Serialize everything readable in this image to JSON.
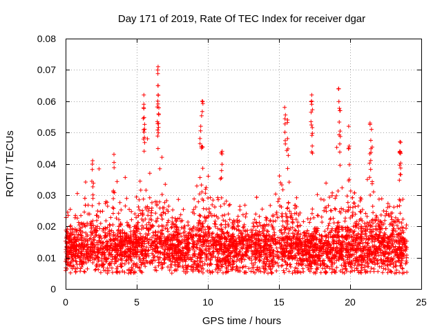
{
  "chart_data": {
    "type": "scatter",
    "title": "Day 171 of 2019, Rate Of TEC Index for receiver dgar",
    "xlabel": "GPS time / hours",
    "ylabel": "ROTI / TECUs",
    "xlim": [
      0,
      25
    ],
    "ylim": [
      0,
      0.08
    ],
    "x_ticks": [
      0,
      5,
      10,
      15,
      20,
      25
    ],
    "y_ticks": [
      0,
      0.01,
      0.02,
      0.03,
      0.04,
      0.05,
      0.06,
      0.07,
      0.08
    ],
    "x_tick_labels": [
      "0",
      "5",
      "10",
      "15",
      "20",
      "25"
    ],
    "y_tick_labels": [
      "0",
      "0.01",
      "0.02",
      "0.03",
      "0.04",
      "0.05",
      "0.06",
      "0.07",
      "0.08"
    ],
    "grid": true,
    "marker": "+",
    "color": "#ff0000",
    "x_data_range": [
      0,
      24
    ],
    "baseline_band": [
      0.003,
      0.025
    ],
    "notable_peaks": [
      {
        "x": 1.9,
        "y": 0.041
      },
      {
        "x": 3.4,
        "y": 0.043
      },
      {
        "x": 5.5,
        "y": 0.062
      },
      {
        "x": 5.5,
        "y": 0.059
      },
      {
        "x": 6.5,
        "y": 0.071
      },
      {
        "x": 6.5,
        "y": 0.065
      },
      {
        "x": 6.5,
        "y": 0.062
      },
      {
        "x": 9.5,
        "y": 0.052
      },
      {
        "x": 9.6,
        "y": 0.06
      },
      {
        "x": 11.0,
        "y": 0.044
      },
      {
        "x": 15.4,
        "y": 0.058
      },
      {
        "x": 15.6,
        "y": 0.054
      },
      {
        "x": 17.3,
        "y": 0.062
      },
      {
        "x": 17.3,
        "y": 0.059
      },
      {
        "x": 19.2,
        "y": 0.064
      },
      {
        "x": 19.3,
        "y": 0.057
      },
      {
        "x": 19.9,
        "y": 0.052
      },
      {
        "x": 21.4,
        "y": 0.053
      },
      {
        "x": 21.5,
        "y": 0.051
      },
      {
        "x": 23.5,
        "y": 0.047
      },
      {
        "x": 23.5,
        "y": 0.044
      }
    ]
  }
}
